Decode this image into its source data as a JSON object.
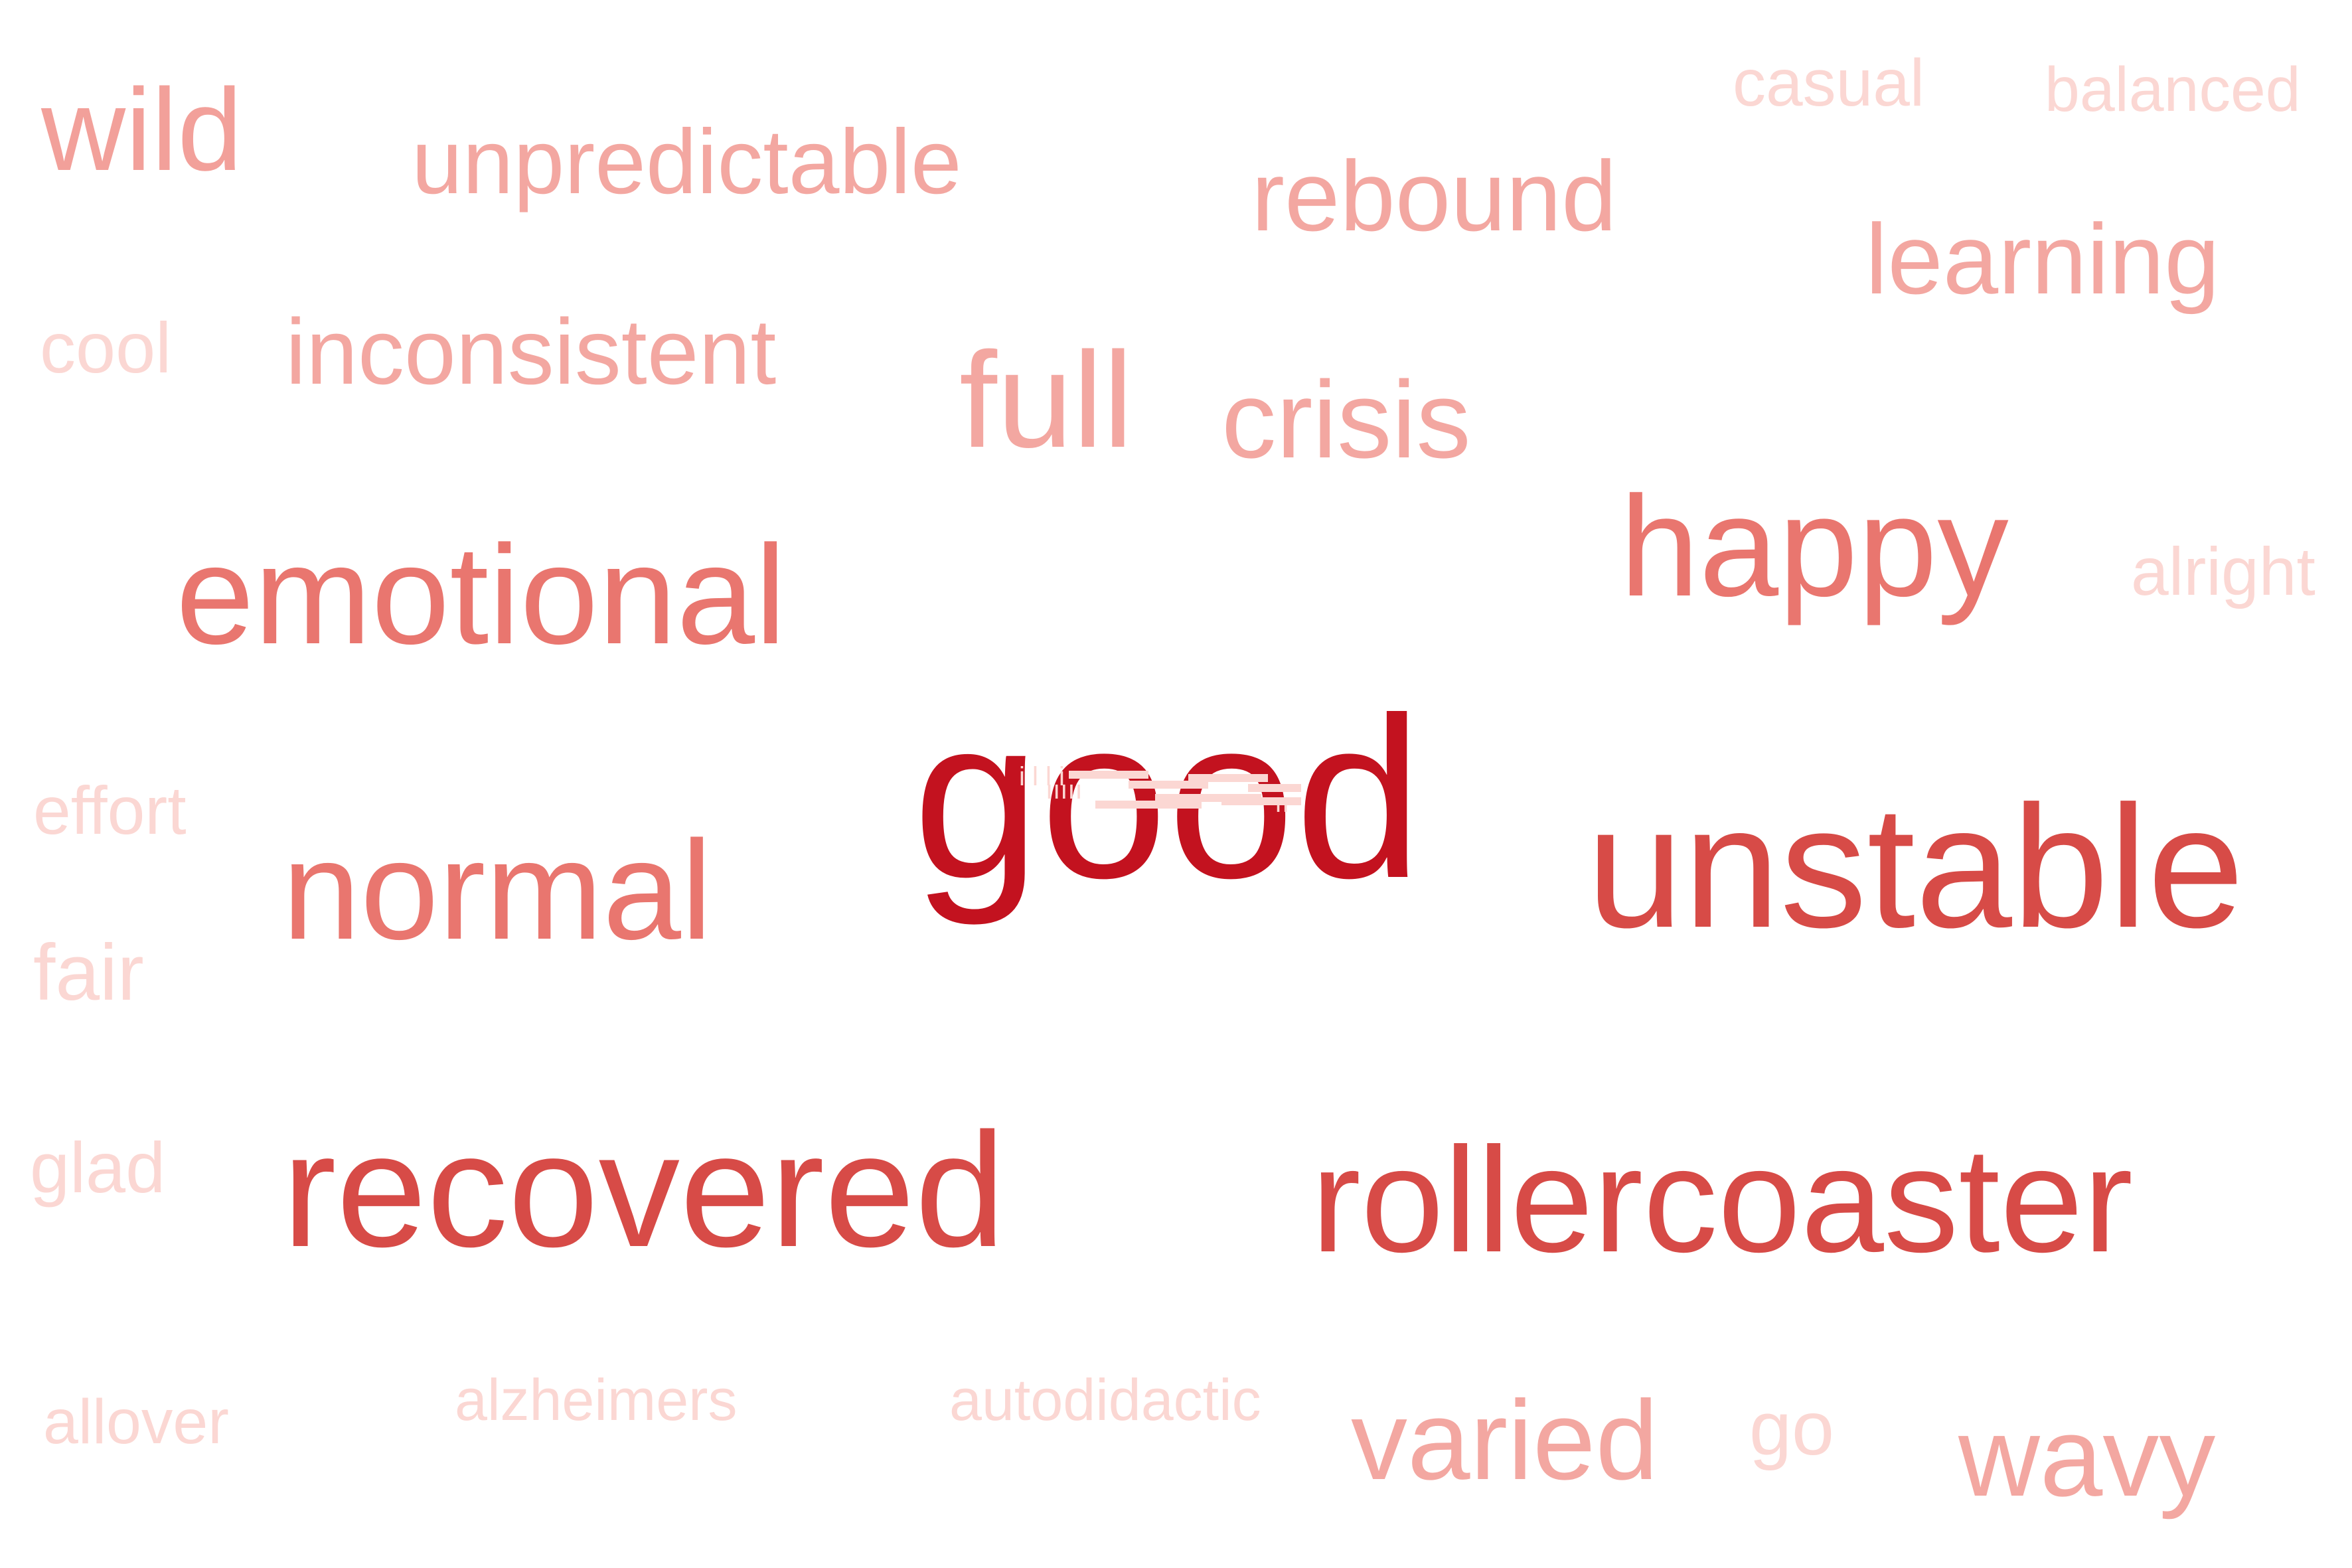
{
  "word_cloud": {
    "words": {
      "wild": {
        "text": "wild",
        "color": "#f2a09a"
      },
      "unpredictable": {
        "text": "unpredictable",
        "color": "#f3a7a1"
      },
      "casual": {
        "text": "casual",
        "color": "#fbd7d3"
      },
      "balanced": {
        "text": "balanced",
        "color": "#fbd7d3"
      },
      "rebound": {
        "text": "rebound",
        "color": "#f3a7a1"
      },
      "learning": {
        "text": "learning",
        "color": "#f3a7a1"
      },
      "cool": {
        "text": "cool",
        "color": "#fbd7d3"
      },
      "inconsistent": {
        "text": "inconsistent",
        "color": "#f3a7a1"
      },
      "full": {
        "text": "full",
        "color": "#f3a7a1"
      },
      "crisis": {
        "text": "crisis",
        "color": "#f3a7a1"
      },
      "happy": {
        "text": "happy",
        "color": "#e9766f"
      },
      "alright": {
        "text": "alright",
        "color": "#fbd7d3"
      },
      "emotional": {
        "text": "emotional",
        "color": "#e9766f"
      },
      "good": {
        "text": "good",
        "color": "#c3121f"
      },
      "unstable": {
        "text": "unstable",
        "color": "#d74b47"
      },
      "effort": {
        "text": "effort",
        "color": "#fbd7d3"
      },
      "normal": {
        "text": "normal",
        "color": "#e9766f"
      },
      "fair": {
        "text": "fair",
        "color": "#fbd7d3"
      },
      "glad": {
        "text": "glad",
        "color": "#fbd7d3"
      },
      "recovered": {
        "text": "recovered",
        "color": "#d74b47"
      },
      "rollercoaster": {
        "text": "rollercoaster",
        "color": "#d74b47"
      },
      "allover": {
        "text": "allover",
        "color": "#fbd7d3"
      },
      "alzheimers": {
        "text": "alzheimers",
        "color": "#fbd7d3"
      },
      "autodidactic": {
        "text": "autodidactic",
        "color": "#fbd7d3"
      },
      "varied": {
        "text": "varied",
        "color": "#f3a7a1"
      },
      "go": {
        "text": "go",
        "color": "#fbd7d3"
      },
      "wavy": {
        "text": "wavy",
        "color": "#f3a7a1"
      }
    },
    "tiny_cluster_color": "#fbd7d3"
  }
}
